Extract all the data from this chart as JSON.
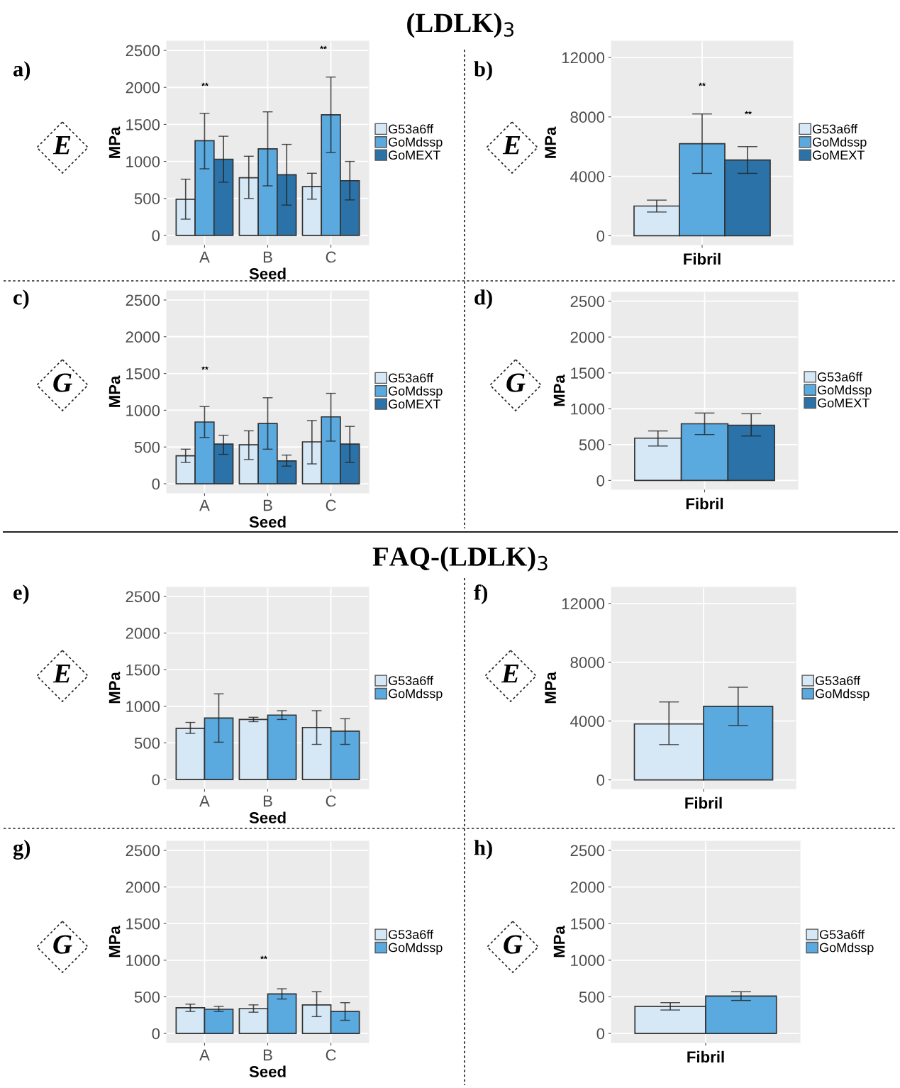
{
  "chart_data": [
    {
      "type": "other",
      "title": "(LDLK)$_{3}$"
    },
    {
      "type": "bar",
      "annotations": [
        "a)",
        "E",
        "**",
        "**"
      ],
      "categories": [
        "A",
        "B",
        "C"
      ],
      "xlabel": "Seed",
      "ylabel": "MPa",
      "ylim": [
        -125,
        2625
      ],
      "yticks": [
        0,
        500,
        1000,
        1500,
        2000,
        2500
      ],
      "grid": true,
      "legend": "right",
      "series": [
        {
          "name": "G53a6ff",
          "color": "#d6e8f6",
          "values": [
            490,
            780,
            660
          ],
          "errors": [
            [
              220,
              760
            ],
            [
              500,
              1070
            ],
            [
              490,
              840
            ]
          ]
        },
        {
          "name": "GoMdssp",
          "color": "#5aa9df",
          "values": [
            1280,
            1170,
            1630
          ],
          "errors": [
            [
              900,
              1650
            ],
            [
              670,
              1670
            ],
            [
              1120,
              2140
            ]
          ]
        },
        {
          "name": "GoMEXT",
          "color": "#2b72a8",
          "values": [
            1030,
            820,
            740
          ],
          "errors": [
            [
              720,
              1340
            ],
            [
              410,
              1230
            ],
            [
              480,
              1000
            ]
          ]
        }
      ]
    },
    {
      "type": "bar",
      "annotations": [
        "b)",
        "E",
        "**",
        "**"
      ],
      "categories": [
        null
      ],
      "xlabel": "Fibril",
      "ylabel": "MPa",
      "ylim": [
        -600,
        13100
      ],
      "yticks": [
        0,
        4000,
        8000,
        12000
      ],
      "grid": true,
      "legend": "right",
      "series": [
        {
          "name": "G53a6ff",
          "color": "#d6e8f6",
          "values": [
            2000
          ],
          "errors": [
            [
              1600,
              2400
            ]
          ]
        },
        {
          "name": "GoMdssp",
          "color": "#5aa9df",
          "values": [
            6200
          ],
          "errors": [
            [
              4200,
              8200
            ]
          ]
        },
        {
          "name": "GoMEXT",
          "color": "#2b72a8",
          "values": [
            5100
          ],
          "errors": [
            [
              4200,
              6000
            ]
          ]
        }
      ]
    },
    {
      "type": "bar",
      "annotations": [
        "c)",
        "G",
        "**"
      ],
      "categories": [
        "A",
        "B",
        "C"
      ],
      "xlabel": "Seed",
      "ylabel": "MPa",
      "ylim": [
        -125,
        2625
      ],
      "yticks": [
        0,
        500,
        1000,
        1500,
        2000,
        2500
      ],
      "grid": true,
      "legend": "right",
      "series": [
        {
          "name": "G53a6ff",
          "color": "#d6e8f6",
          "values": [
            380,
            530,
            570
          ],
          "errors": [
            [
              290,
              470
            ],
            [
              330,
              720
            ],
            [
              270,
              860
            ]
          ]
        },
        {
          "name": "GoMdssp",
          "color": "#5aa9df",
          "values": [
            840,
            820,
            910
          ],
          "errors": [
            [
              630,
              1050
            ],
            [
              470,
              1170
            ],
            [
              580,
              1230
            ]
          ]
        },
        {
          "name": "GoMEXT",
          "color": "#2b72a8",
          "values": [
            540,
            310,
            540
          ],
          "errors": [
            [
              400,
              660
            ],
            [
              240,
              390
            ],
            [
              290,
              780
            ]
          ]
        }
      ]
    },
    {
      "type": "bar",
      "annotations": [
        "d)",
        "G"
      ],
      "categories": [
        null
      ],
      "xlabel": "Fibril",
      "ylabel": "MPa",
      "ylim": [
        -125,
        2625
      ],
      "yticks": [
        0,
        500,
        1000,
        1500,
        2000,
        2500
      ],
      "grid": true,
      "legend": "right",
      "series": [
        {
          "name": "G53a6ff",
          "color": "#d6e8f6",
          "values": [
            590
          ],
          "errors": [
            [
              480,
              690
            ]
          ]
        },
        {
          "name": "GoMdssp",
          "color": "#5aa9df",
          "values": [
            790
          ],
          "errors": [
            [
              640,
              940
            ]
          ]
        },
        {
          "name": "GoMEXT",
          "color": "#2b72a8",
          "values": [
            770
          ],
          "errors": [
            [
              620,
              930
            ]
          ]
        }
      ]
    },
    {
      "type": "other",
      "title": "FAQ-(LDLK)$_{3}$"
    },
    {
      "type": "bar",
      "annotations": [
        "e)",
        "E"
      ],
      "categories": [
        "A",
        "B",
        "C"
      ],
      "xlabel": "Seed",
      "ylabel": "MPa",
      "ylim": [
        -125,
        2625
      ],
      "yticks": [
        0,
        500,
        1000,
        1500,
        2000,
        2500
      ],
      "grid": true,
      "legend": "right",
      "series": [
        {
          "name": "G53a6ff",
          "color": "#d6e8f6",
          "values": [
            700,
            820,
            710
          ],
          "errors": [
            [
              630,
              780
            ],
            [
              790,
              850
            ],
            [
              480,
              940
            ]
          ]
        },
        {
          "name": "GoMdssp",
          "color": "#5aa9df",
          "values": [
            840,
            880,
            660
          ],
          "errors": [
            [
              510,
              1170
            ],
            [
              820,
              940
            ],
            [
              480,
              830
            ]
          ]
        }
      ]
    },
    {
      "type": "bar",
      "annotations": [
        "f)",
        "E"
      ],
      "categories": [
        null
      ],
      "xlabel": "Fibril",
      "ylabel": "MPa",
      "ylim": [
        -600,
        13100
      ],
      "yticks": [
        0,
        4000,
        8000,
        12000
      ],
      "grid": true,
      "legend": "right",
      "series": [
        {
          "name": "G53a6ff",
          "color": "#d6e8f6",
          "values": [
            3800
          ],
          "errors": [
            [
              2400,
              5300
            ]
          ]
        },
        {
          "name": "GoMdssp",
          "color": "#5aa9df",
          "values": [
            5000
          ],
          "errors": [
            [
              3700,
              6300
            ]
          ]
        }
      ]
    },
    {
      "type": "bar",
      "annotations": [
        "g)",
        "G",
        "**"
      ],
      "categories": [
        "A",
        "B",
        "C"
      ],
      "xlabel": "Seed",
      "ylabel": "MPa",
      "ylim": [
        -125,
        2625
      ],
      "yticks": [
        0,
        500,
        1000,
        1500,
        2000,
        2500
      ],
      "grid": true,
      "legend": "right",
      "series": [
        {
          "name": "G53a6ff",
          "color": "#d6e8f6",
          "values": [
            350,
            340,
            390
          ],
          "errors": [
            [
              300,
              400
            ],
            [
              290,
              390
            ],
            [
              230,
              570
            ]
          ]
        },
        {
          "name": "GoMdssp",
          "color": "#5aa9df",
          "values": [
            330,
            540,
            300
          ],
          "errors": [
            [
              300,
              370
            ],
            [
              470,
              610
            ],
            [
              180,
              420
            ]
          ]
        }
      ]
    },
    {
      "type": "bar",
      "annotations": [
        "h)",
        "G"
      ],
      "categories": [
        null
      ],
      "xlabel": "Fibril",
      "ylabel": "MPa",
      "ylim": [
        -125,
        2625
      ],
      "yticks": [
        0,
        500,
        1000,
        1500,
        2000,
        2500
      ],
      "grid": true,
      "legend": "right",
      "series": [
        {
          "name": "G53a6ff",
          "color": "#d6e8f6",
          "values": [
            370
          ],
          "errors": [
            [
              320,
              420
            ]
          ]
        },
        {
          "name": "GoMdssp",
          "color": "#5aa9df",
          "values": [
            510
          ],
          "errors": [
            [
              450,
              570
            ]
          ]
        }
      ]
    }
  ]
}
